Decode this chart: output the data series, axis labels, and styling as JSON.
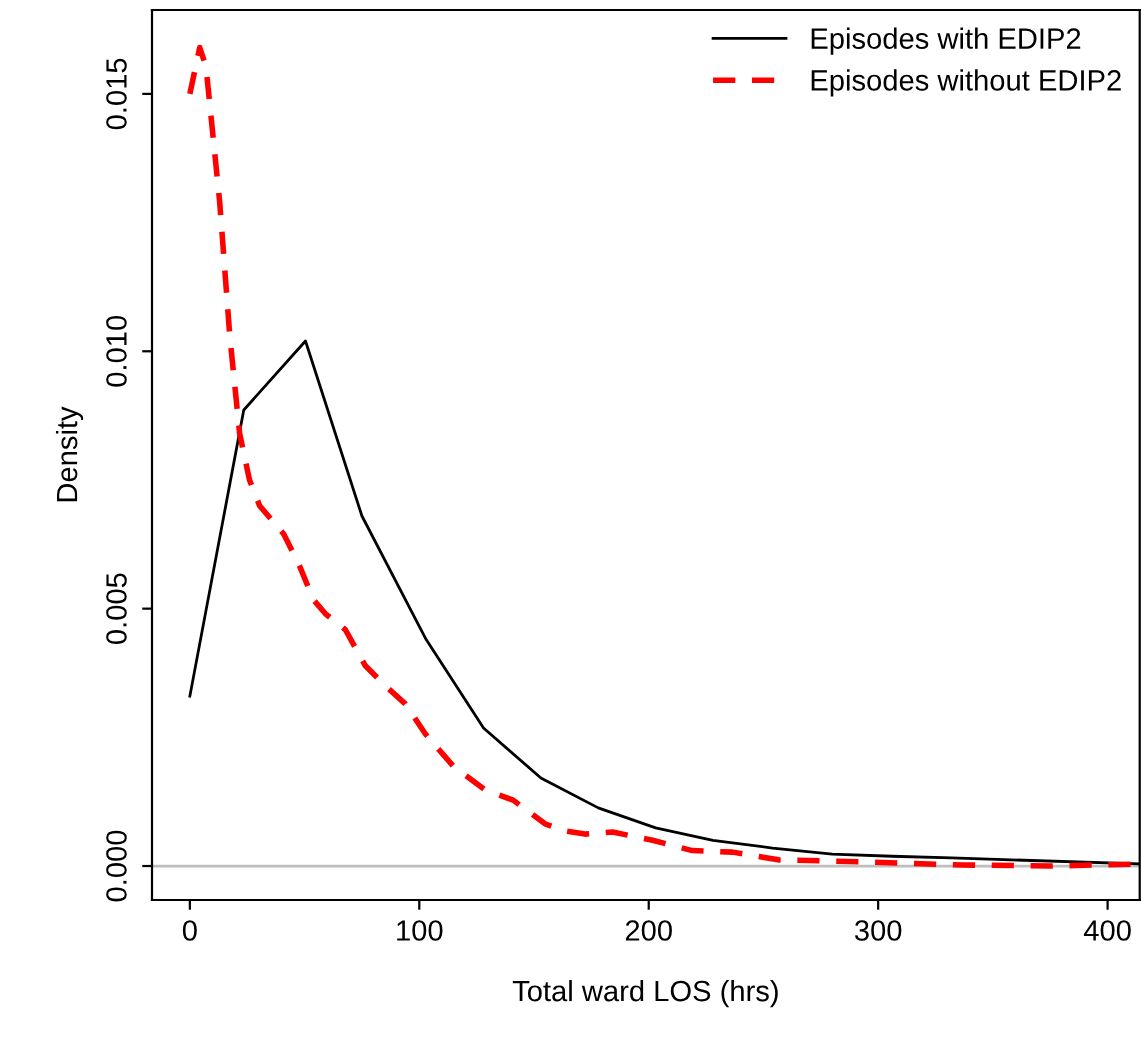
{
  "chart_data": {
    "type": "line",
    "xlabel": "Total ward LOS (hrs)",
    "ylabel": "Density",
    "xlim": [
      -16.5,
      414
    ],
    "ylim": [
      -0.00066,
      0.01663
    ],
    "xticks": [
      0,
      100,
      200,
      300,
      400
    ],
    "yticks": [
      {
        "value": 0,
        "label": "0.000"
      },
      {
        "value": 0.005,
        "label": "0.005"
      },
      {
        "value": 0.01,
        "label": "0.010"
      },
      {
        "value": 0.015,
        "label": "0.015"
      }
    ],
    "grid": false,
    "legend": "top right",
    "ref_lines": [
      {
        "axis": "y",
        "value": 0,
        "color": "#bebebe"
      }
    ],
    "series": [
      {
        "name": "Episodes with EDIP2",
        "color": "#000000",
        "line_style": "solid",
        "x": [
          0,
          23.5,
          50.4,
          75,
          103,
          128,
          153,
          178,
          203,
          228,
          254,
          280,
          306,
          332,
          358,
          414
        ],
        "values": [
          0.0033,
          0.00886,
          0.0102,
          0.0068,
          0.0044,
          0.00268,
          0.00171,
          0.00113,
          0.00074,
          0.0005,
          0.00035,
          0.00023,
          0.00019,
          0.00016,
          0.00012,
          4e-05
        ]
      },
      {
        "name": "Episodes without EDIP2",
        "color": "#ff0000",
        "line_style": "dashed",
        "x": [
          0,
          4.3,
          7,
          13,
          17.4,
          21.7,
          26,
          30.4,
          40.9,
          47.8,
          53.9,
          59.1,
          67.8,
          76.5,
          85.2,
          93.9,
          102.6,
          114.8,
          128.7,
          140.9,
          154.8,
          163.5,
          172.2,
          184.3,
          201.7,
          219,
          236.5,
          256.5,
          294,
          337,
          375.7,
          414
        ],
        "values": [
          0.015,
          0.0159,
          0.01554,
          0.0129,
          0.0103,
          0.0084,
          0.0075,
          0.007,
          0.00645,
          0.00583,
          0.00517,
          0.0049,
          0.00459,
          0.00389,
          0.0035,
          0.00315,
          0.00257,
          0.00194,
          0.00148,
          0.00128,
          0.00082,
          0.00068,
          0.00062,
          0.00066,
          0.0005,
          0.0003,
          0.00027,
          0.00012,
          8e-05,
          2e-05,
          0,
          4e-05
        ]
      }
    ]
  }
}
